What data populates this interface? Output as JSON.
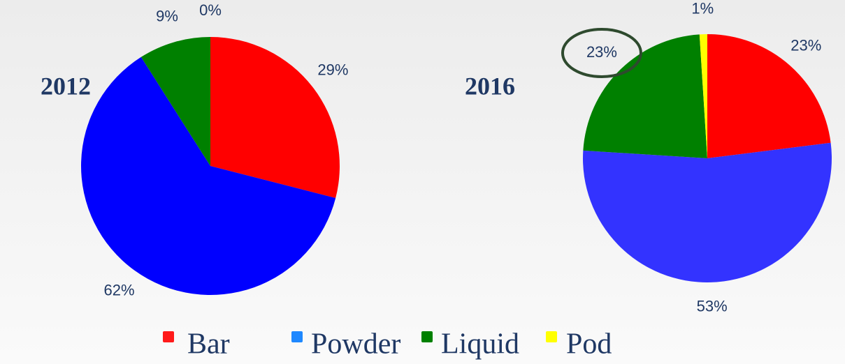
{
  "chart_data": [
    {
      "type": "pie",
      "title": "2012",
      "categories": [
        "Bar",
        "Powder",
        "Liquid",
        "Pod"
      ],
      "values": [
        29,
        62,
        9,
        0
      ],
      "value_labels": [
        "29%",
        "62%",
        "9%",
        "0%"
      ],
      "colors": [
        "#ff0000",
        "#0000ff",
        "#008000",
        "#ffff00"
      ]
    },
    {
      "type": "pie",
      "title": "2016",
      "categories": [
        "Bar",
        "Powder",
        "Liquid",
        "Pod"
      ],
      "values": [
        23,
        53,
        23,
        1
      ],
      "value_labels": [
        "23%",
        "53%",
        "23%",
        "1%"
      ],
      "colors": [
        "#ff0000",
        "#3333ff",
        "#008000",
        "#ffff00"
      ]
    }
  ],
  "legend": {
    "items": [
      "Bar",
      "Powder",
      "Liquid",
      "Pod"
    ],
    "colors": [
      "#ff1a1a",
      "#1e88ff",
      "#008000",
      "#ffff00"
    ]
  }
}
